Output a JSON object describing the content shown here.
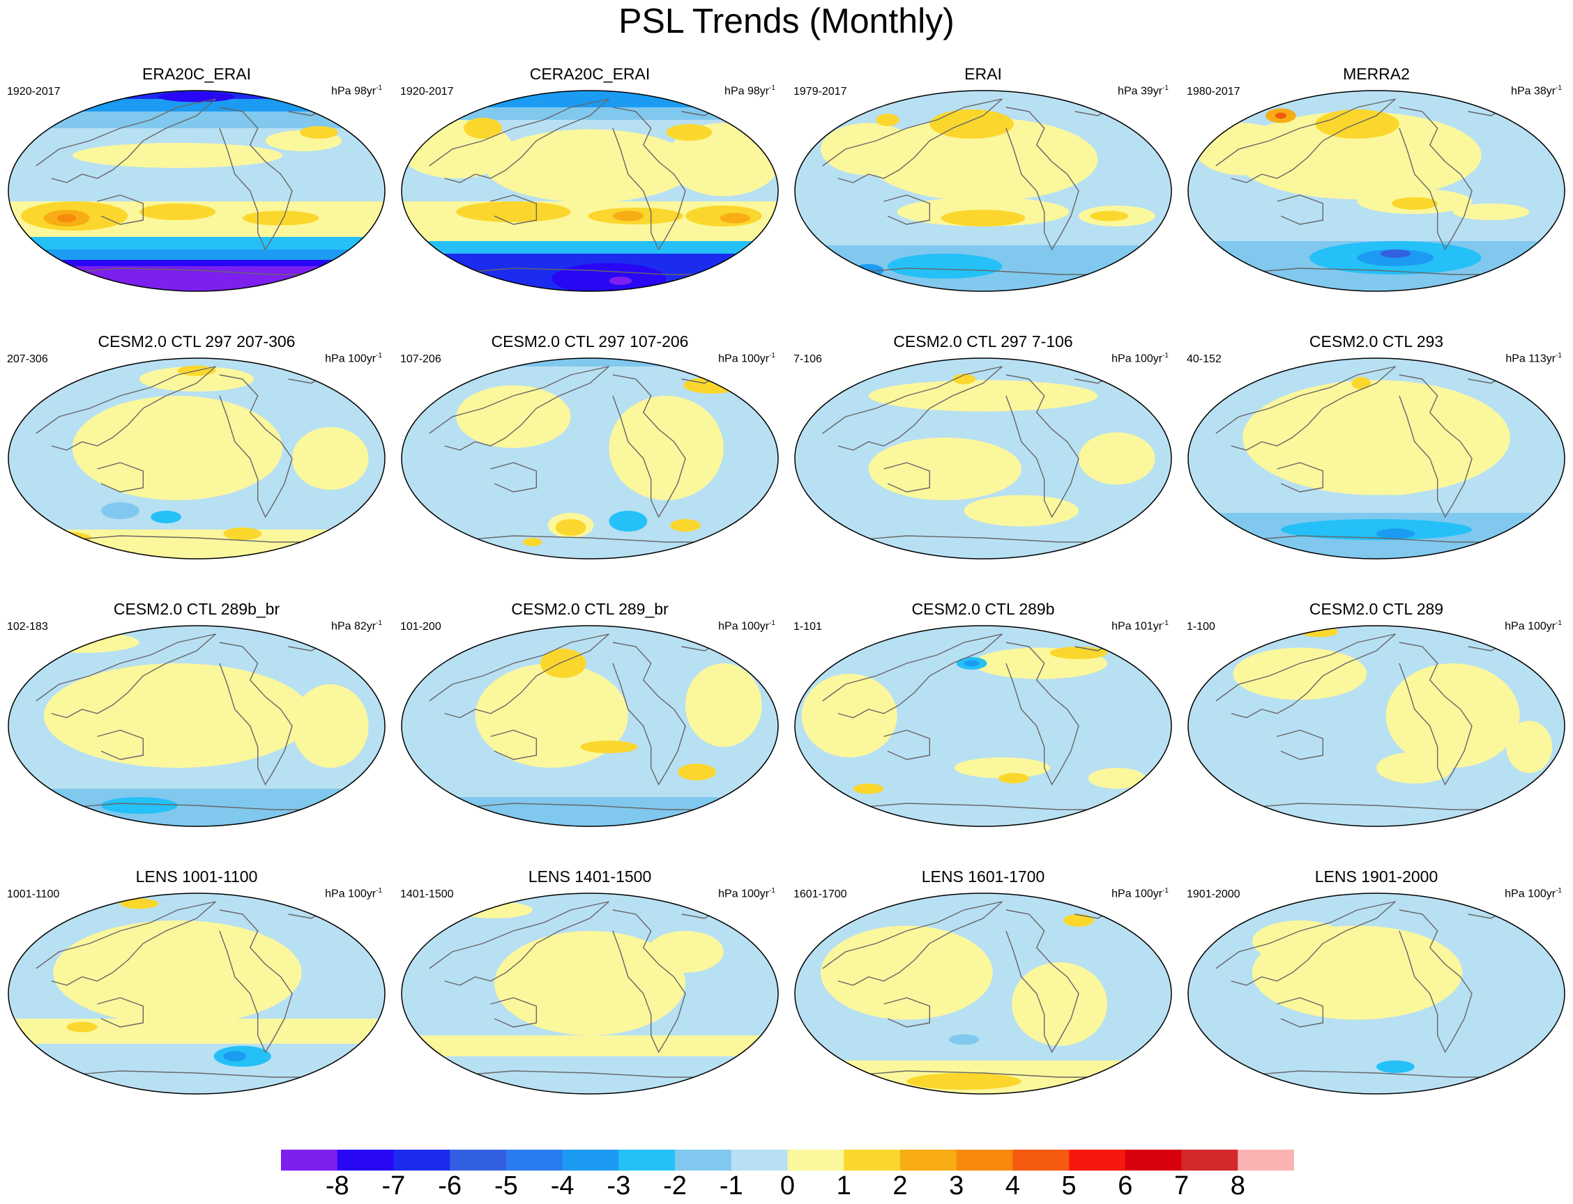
{
  "title": "PSL Trends (Monthly)",
  "panels": [
    {
      "title": "ERA20C_ERAI",
      "period": "1920-2017",
      "units": "hPa 98yr",
      "units_exp": "-1",
      "pattern": "era20c"
    },
    {
      "title": "CERA20C_ERAI",
      "period": "1920-2017",
      "units": "hPa 98yr",
      "units_exp": "-1",
      "pattern": "cera20c"
    },
    {
      "title": "ERAI",
      "period": "1979-2017",
      "units": "hPa 39yr",
      "units_exp": "-1",
      "pattern": "erai"
    },
    {
      "title": "MERRA2",
      "period": "1980-2017",
      "units": "hPa 38yr",
      "units_exp": "-1",
      "pattern": "merra2"
    },
    {
      "title": "CESM2.0 CTL 297 207-306",
      "period": "207-306",
      "units": "hPa 100yr",
      "units_exp": "-1",
      "pattern": "weak1"
    },
    {
      "title": "CESM2.0 CTL 297 107-206",
      "period": "107-206",
      "units": "hPa 100yr",
      "units_exp": "-1",
      "pattern": "weak2"
    },
    {
      "title": "CESM2.0 CTL 297 7-106",
      "period": "7-106",
      "units": "hPa 100yr",
      "units_exp": "-1",
      "pattern": "weak3"
    },
    {
      "title": "CESM2.0 CTL 293",
      "period": "40-152",
      "units": "hPa 113yr",
      "units_exp": "-1",
      "pattern": "ctl293"
    },
    {
      "title": "CESM2.0 CTL 289b_br",
      "period": "102-183",
      "units": "hPa 82yr",
      "units_exp": "-1",
      "pattern": "weak4"
    },
    {
      "title": "CESM2.0 CTL 289_br",
      "period": "101-200",
      "units": "hPa 100yr",
      "units_exp": "-1",
      "pattern": "weak5"
    },
    {
      "title": "CESM2.0 CTL 289b",
      "period": "1-101",
      "units": "hPa 101yr",
      "units_exp": "-1",
      "pattern": "weak6"
    },
    {
      "title": "CESM2.0 CTL 289",
      "period": "1-100",
      "units": "hPa 100yr",
      "units_exp": "-1",
      "pattern": "weak7"
    },
    {
      "title": "LENS 1001-1100",
      "period": "1001-1100",
      "units": "hPa 100yr",
      "units_exp": "-1",
      "pattern": "lens1"
    },
    {
      "title": "LENS 1401-1500",
      "period": "1401-1500",
      "units": "hPa 100yr",
      "units_exp": "-1",
      "pattern": "lens2"
    },
    {
      "title": "LENS 1601-1700",
      "period": "1601-1700",
      "units": "hPa 100yr",
      "units_exp": "-1",
      "pattern": "lens3"
    },
    {
      "title": "LENS 1901-2000",
      "period": "1901-2000",
      "units": "hPa 100yr",
      "units_exp": "-1",
      "pattern": "lens4"
    }
  ],
  "colorbar": {
    "labels": [
      "-8",
      "-7",
      "-6",
      "-5",
      "-4",
      "-3",
      "-2",
      "-1",
      "0",
      "1",
      "2",
      "3",
      "4",
      "5",
      "6",
      "7",
      "8"
    ],
    "colors": [
      "#7c1fef",
      "#2807f5",
      "#1c2cef",
      "#3360e2",
      "#2a7bef",
      "#1c9bf2",
      "#24c0f7",
      "#80c8ee",
      "#b8e0f3",
      "#fbf79c",
      "#fbd72d",
      "#f8ad14",
      "#f6890e",
      "#f45a10",
      "#f8170c",
      "#d8000c",
      "#d22a2c",
      "#fbb2b2"
    ]
  }
}
